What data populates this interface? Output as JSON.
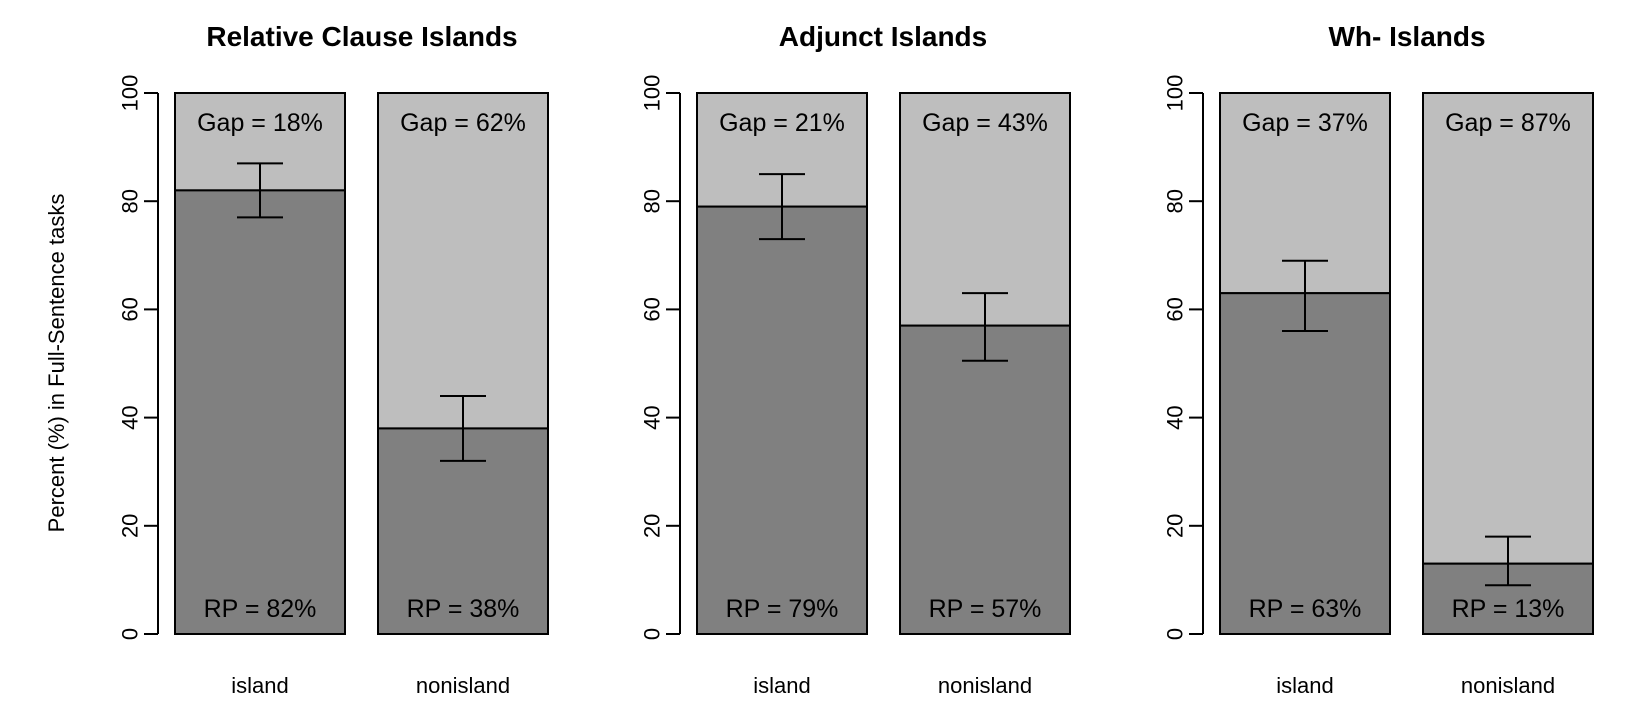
{
  "ylabel": "Percent (%) in Full-Sentence tasks",
  "colors": {
    "rp": "#808080",
    "gap": "#bebebe",
    "outline": "#000000"
  },
  "chart_data": [
    {
      "type": "bar",
      "stacked": true,
      "title": "Relative Clause Islands",
      "categories": [
        "island",
        "nonisland"
      ],
      "ylim": [
        0,
        100
      ],
      "yticks": [
        0,
        20,
        40,
        60,
        80,
        100
      ],
      "ylabel": "Percent (%) in Full-Sentence tasks",
      "series": [
        {
          "name": "RP",
          "values": [
            82,
            38
          ]
        },
        {
          "name": "Gap",
          "values": [
            18,
            62
          ]
        }
      ],
      "error_bars": [
        [
          77,
          87
        ],
        [
          32,
          44
        ]
      ],
      "rp_labels": [
        "RP = 82%",
        "RP = 38%"
      ],
      "gap_labels": [
        "Gap = 18%",
        "Gap = 62%"
      ]
    },
    {
      "type": "bar",
      "stacked": true,
      "title": "Adjunct Islands",
      "categories": [
        "island",
        "nonisland"
      ],
      "ylim": [
        0,
        100
      ],
      "yticks": [
        0,
        20,
        40,
        60,
        80,
        100
      ],
      "series": [
        {
          "name": "RP",
          "values": [
            79,
            57
          ]
        },
        {
          "name": "Gap",
          "values": [
            21,
            43
          ]
        }
      ],
      "error_bars": [
        [
          73,
          85
        ],
        [
          50.5,
          63
        ]
      ],
      "rp_labels": [
        "RP = 79%",
        "RP = 57%"
      ],
      "gap_labels": [
        "Gap = 21%",
        "Gap = 43%"
      ]
    },
    {
      "type": "bar",
      "stacked": true,
      "title": "Wh- Islands",
      "categories": [
        "island",
        "nonisland"
      ],
      "ylim": [
        0,
        100
      ],
      "yticks": [
        0,
        20,
        40,
        60,
        80,
        100
      ],
      "series": [
        {
          "name": "RP",
          "values": [
            63,
            13
          ]
        },
        {
          "name": "Gap",
          "values": [
            37,
            87
          ]
        }
      ],
      "error_bars": [
        [
          56,
          69
        ],
        [
          9,
          18
        ]
      ],
      "rp_labels": [
        "RP = 63%",
        "RP = 13%"
      ],
      "gap_labels": [
        "Gap = 37%",
        "Gap = 87%"
      ]
    }
  ]
}
